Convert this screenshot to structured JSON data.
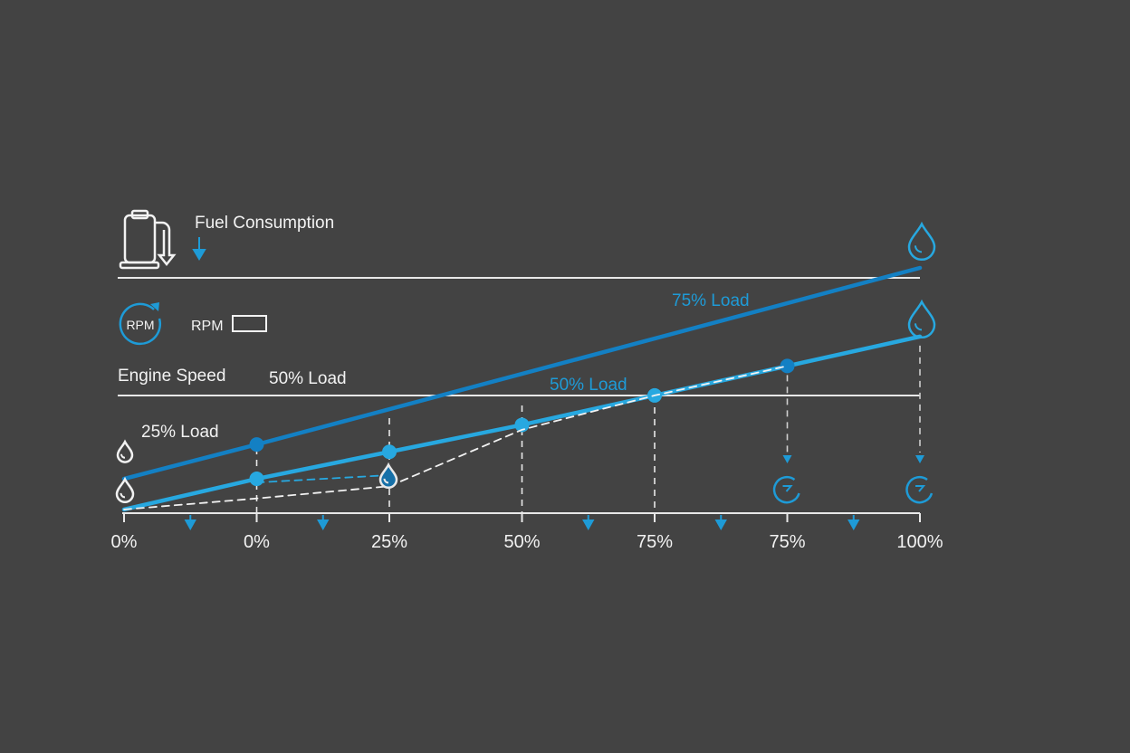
{
  "legend": {
    "fuel_label": "Fuel Consumption",
    "rpm_icon_label": "RPM",
    "rpm_label": "RPM",
    "engine_speed_label": "Engine Speed",
    "load_50_header": "50% Load",
    "load_25_label": "25% Load"
  },
  "colors": {
    "background": "#434343",
    "dark_blue": "#1380c4",
    "light_blue": "#27a8e0",
    "white": "#f2f2f2"
  },
  "icons": [
    "fuel-pump-icon",
    "rpm-gauge-icon",
    "fuel-drop-icon",
    "speedometer-icon",
    "arrow-down-icon"
  ],
  "chart_data": {
    "type": "line",
    "categories": [
      "0%",
      "0%",
      "25%",
      "50%",
      "75%",
      "75%",
      "100%"
    ],
    "ylim": [
      0,
      100
    ],
    "grid": false,
    "series": [
      {
        "name": "75% Load",
        "color": "#1380c4",
        "values": [
          14,
          28,
          null,
          null,
          null,
          null,
          100
        ],
        "markers": [
          1
        ]
      },
      {
        "name": "50% Load",
        "color": "#27a8e0",
        "values": [
          1.5,
          14,
          25,
          36,
          48,
          60,
          72
        ],
        "markers": [
          1,
          2,
          3,
          4,
          5
        ]
      },
      {
        "name": "",
        "color": "#f2f2f2",
        "style": "dashed",
        "values": [
          1.5,
          6,
          11,
          34,
          48,
          60,
          null
        ]
      },
      {
        "name": "",
        "color": "#27a8e0",
        "style": "dashed",
        "values": [
          null,
          12.5,
          15.5,
          null,
          null,
          null,
          null
        ]
      }
    ]
  }
}
